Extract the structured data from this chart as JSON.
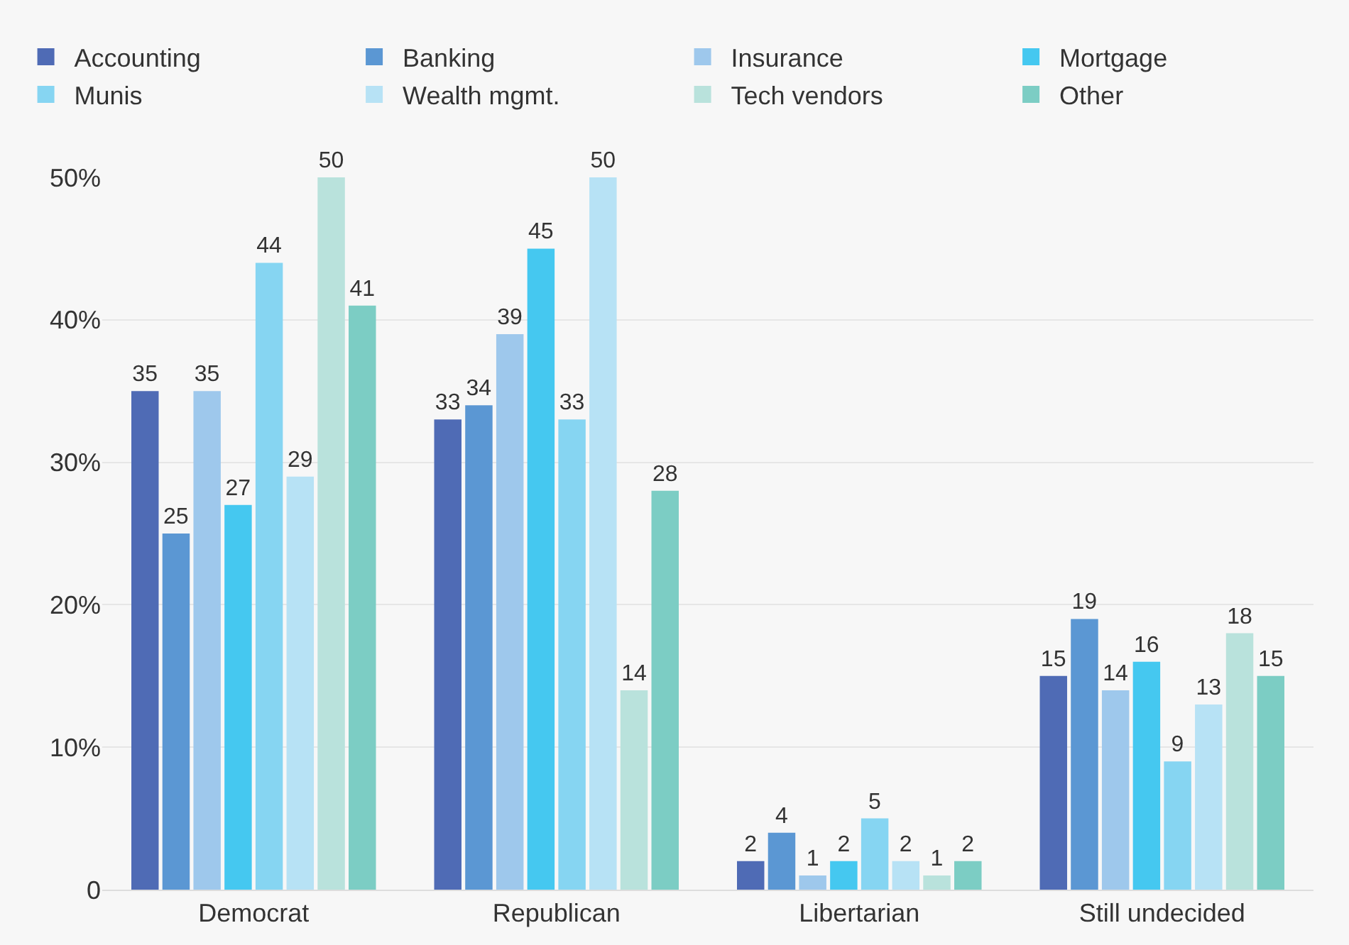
{
  "chart_data": {
    "type": "bar",
    "categories": [
      "Democrat",
      "Republican",
      "Libertarian",
      "Still undecided"
    ],
    "series": [
      {
        "name": "Accounting",
        "color": "#4f6bb5",
        "values": [
          35,
          33,
          2,
          15
        ]
      },
      {
        "name": "Banking",
        "color": "#5b97d3",
        "values": [
          25,
          34,
          4,
          19
        ]
      },
      {
        "name": "Insurance",
        "color": "#9ec8ec",
        "values": [
          35,
          39,
          1,
          14
        ]
      },
      {
        "name": "Mortgage",
        "color": "#45c8f0",
        "values": [
          27,
          45,
          2,
          16
        ]
      },
      {
        "name": "Munis",
        "color": "#86d5f2",
        "values": [
          44,
          33,
          5,
          9
        ]
      },
      {
        "name": "Wealth mgmt.",
        "color": "#b7e2f5",
        "values": [
          29,
          50,
          2,
          13
        ]
      },
      {
        "name": "Tech vendors",
        "color": "#b9e2dc",
        "values": [
          50,
          14,
          1,
          18
        ]
      },
      {
        "name": "Other",
        "color": "#7ccdc4",
        "values": [
          41,
          28,
          2,
          15
        ]
      }
    ],
    "ylim": [
      0,
      50
    ],
    "yticks": [
      0,
      {
        "value": 10,
        "label": "10%"
      },
      {
        "value": 20,
        "label": "20%"
      },
      {
        "value": 30,
        "label": "30%"
      },
      {
        "value": 40,
        "label": "40%"
      },
      {
        "value": 50,
        "label": "50%"
      }
    ],
    "grid": "y",
    "legend": "top left",
    "data_labels": true
  }
}
